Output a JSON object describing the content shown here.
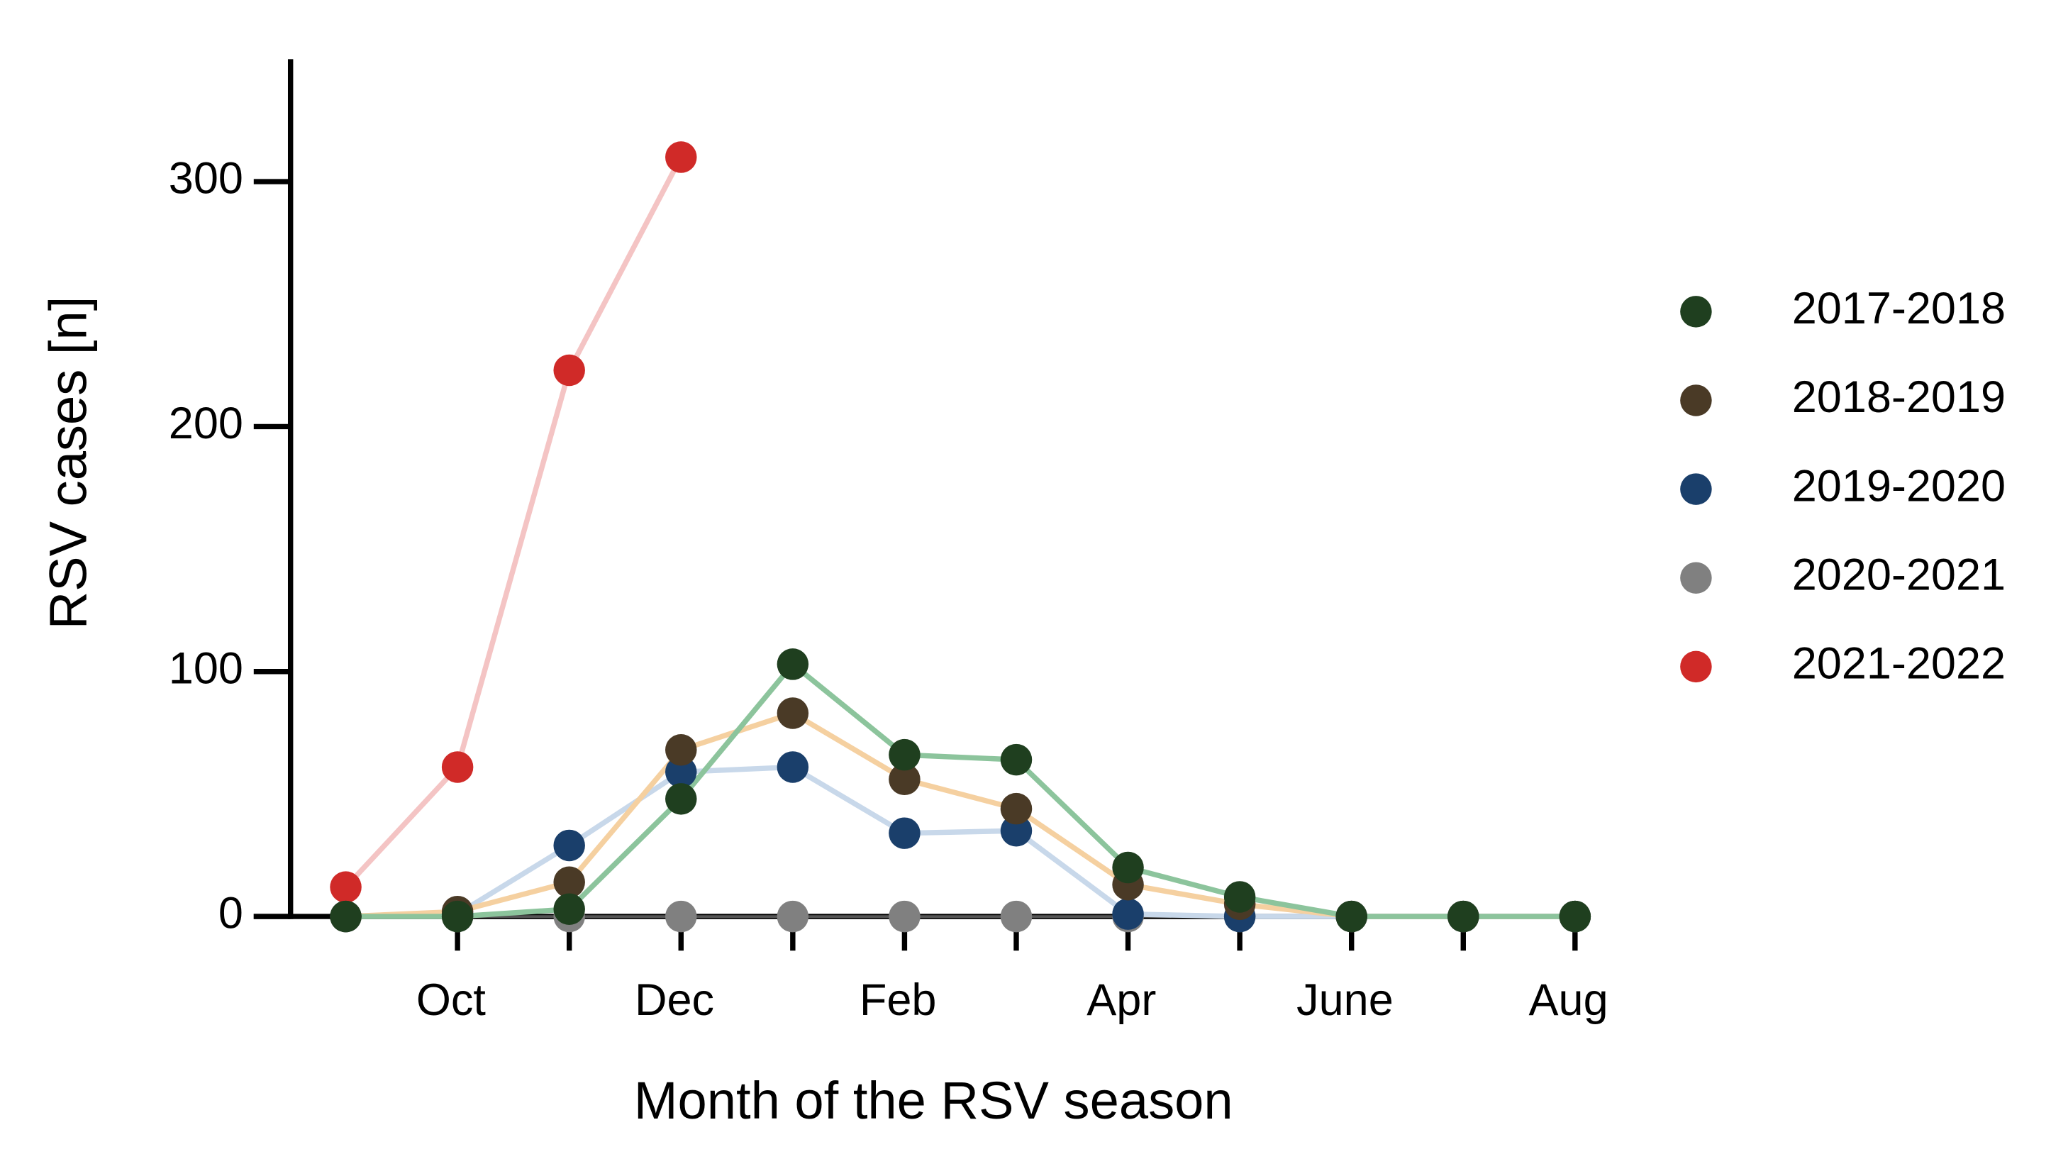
{
  "chart_data": {
    "type": "line",
    "x_label": "Month of the RSV season",
    "y_label": "RSV cases [n]",
    "categories": [
      null,
      "Oct",
      null,
      "Dec",
      null,
      "Feb",
      null,
      "Apr",
      null,
      "June",
      null,
      "Aug"
    ],
    "ylim": [
      0,
      350
    ],
    "yticks": [
      0,
      100,
      200,
      300
    ],
    "legend": "right",
    "series": [
      {
        "name": "2017-2018",
        "color": "#1f3f1f",
        "line_color": "#8cc49c",
        "values": [
          0,
          0,
          3,
          48,
          103,
          66,
          64,
          20,
          8,
          0,
          0,
          0
        ]
      },
      {
        "name": "2018-2019",
        "color": "#4a3a26",
        "line_color": "#f5d0a0",
        "values": [
          0,
          2,
          14,
          68,
          83,
          56,
          44,
          13,
          5,
          0,
          0,
          0
        ]
      },
      {
        "name": "2019-2020",
        "color": "#1a3f6b",
        "line_color": "#c8d8ea",
        "values": [
          0,
          1,
          29,
          59,
          61,
          34,
          35,
          1,
          0,
          0,
          0,
          0
        ]
      },
      {
        "name": "2020-2021",
        "color": "#808080",
        "line_color": "#555555",
        "values": [
          0,
          0,
          0,
          0,
          0,
          0,
          0,
          0,
          0,
          0,
          0,
          0
        ]
      },
      {
        "name": "2021-2022",
        "color": "#d02a28",
        "line_color": "#f4c4c4",
        "values": [
          12,
          61,
          223,
          310,
          null,
          null,
          null,
          null,
          null,
          null,
          null,
          null
        ]
      }
    ]
  }
}
